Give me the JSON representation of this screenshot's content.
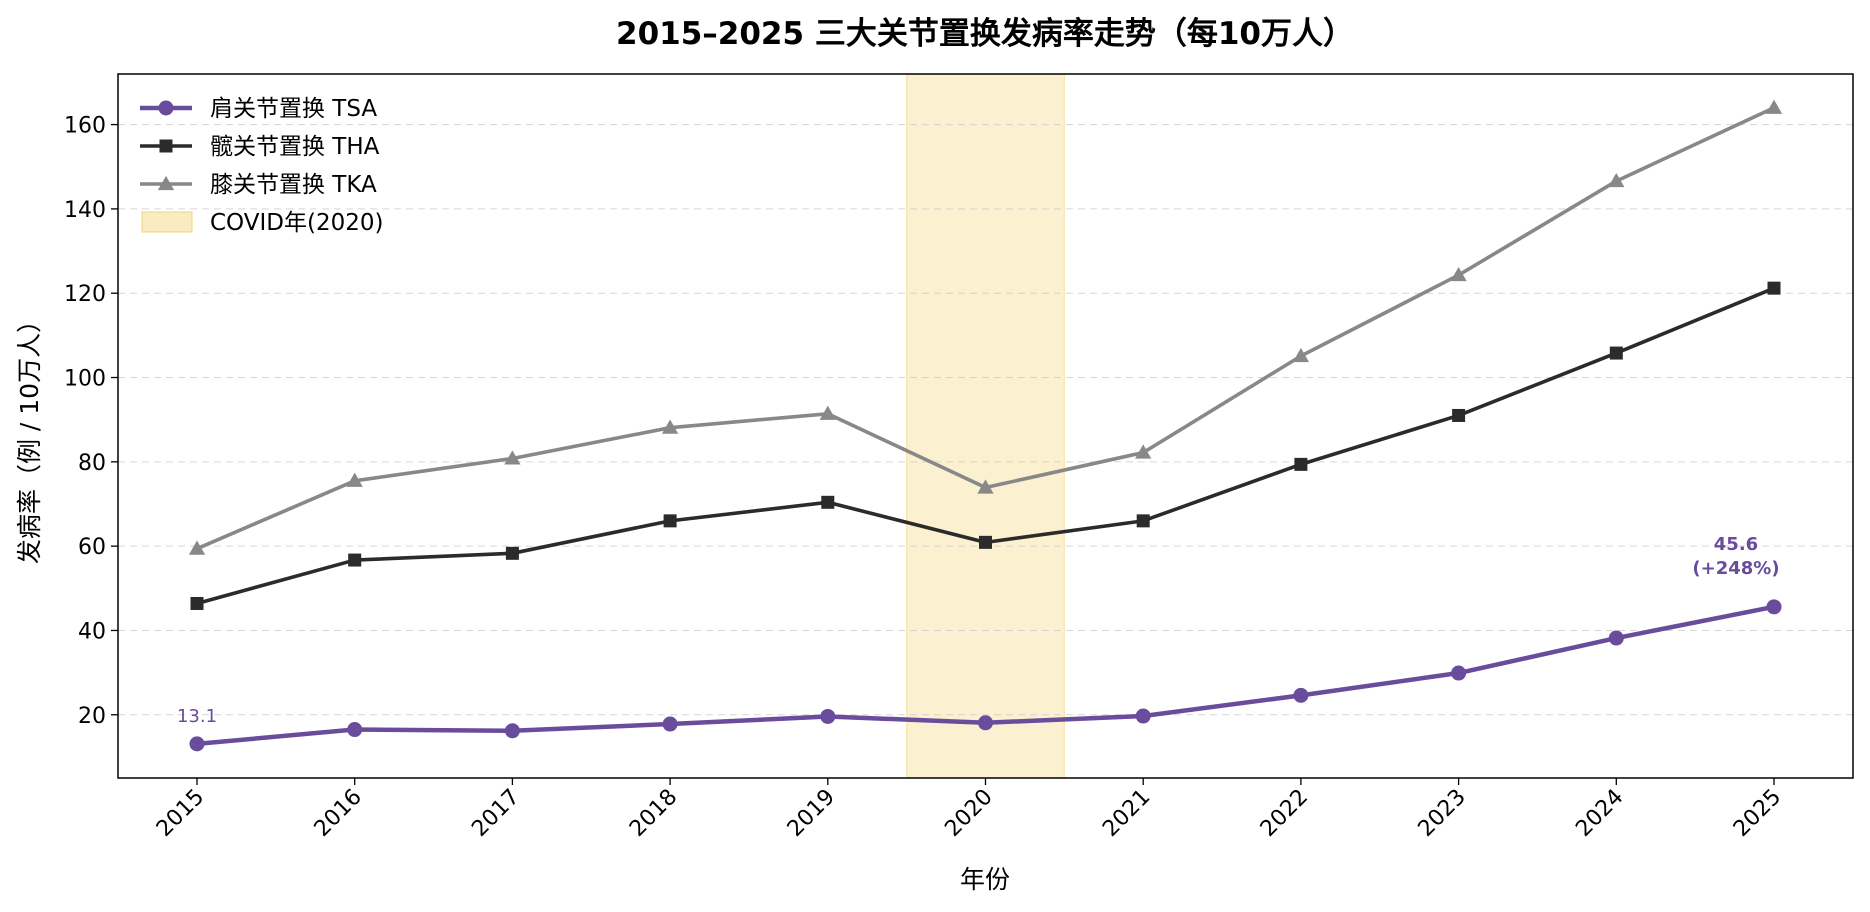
{
  "chart_data": {
    "type": "line",
    "title": "2015–2025 三大关节置换发病率走势（每10万人）",
    "xlabel": "年份",
    "ylabel": "发病率（例 / 10万人）",
    "x": [
      2015,
      2016,
      2017,
      2018,
      2019,
      2020,
      2021,
      2022,
      2023,
      2024,
      2025
    ],
    "ylim": [
      5,
      172
    ],
    "yticks": [
      20,
      40,
      60,
      80,
      100,
      120,
      140,
      160
    ],
    "grid": "y-dashed",
    "legend_position": "top-left",
    "series": [
      {
        "name": "肩关节置换 TSA",
        "color": "#6a4c9c",
        "marker": "circle",
        "values": [
          13.1,
          16.5,
          16.2,
          17.8,
          19.6,
          18.1,
          19.7,
          24.6,
          29.9,
          38.2,
          45.6
        ]
      },
      {
        "name": "髋关节置换 THA",
        "color": "#2b2b2b",
        "marker": "square",
        "values": [
          46.4,
          56.7,
          58.3,
          66.0,
          70.4,
          60.9,
          66.0,
          79.4,
          91.0,
          105.8,
          121.2
        ]
      },
      {
        "name": "膝关节置换 TKA",
        "color": "#888888",
        "marker": "triangle",
        "values": [
          59.4,
          75.5,
          80.8,
          88.1,
          91.4,
          73.9,
          82.2,
          105.1,
          124.3,
          146.6,
          164.0
        ]
      }
    ],
    "highlight_band": {
      "label": "COVID年(2020)",
      "x_range": [
        2019.5,
        2020.5
      ],
      "color": "#f7e3a8"
    },
    "annotations": [
      {
        "x": 2015,
        "y": 13.1,
        "line1": "13.1",
        "line2": "",
        "bold": false,
        "color": "#6a4c9c"
      },
      {
        "x": 2025,
        "y": 45.6,
        "line1": "45.6",
        "line2": "(+248%)",
        "bold": true,
        "color": "#6a4c9c"
      }
    ]
  }
}
